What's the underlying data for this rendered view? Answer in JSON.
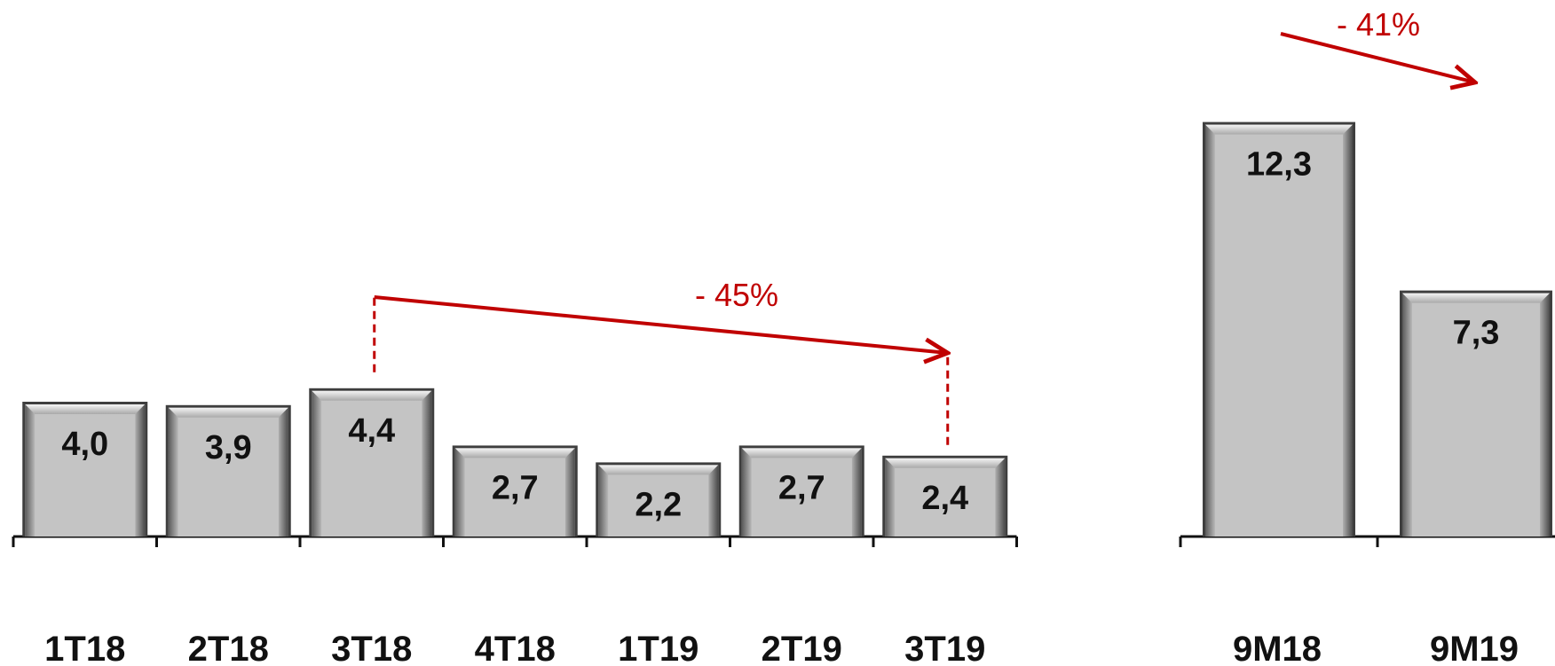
{
  "chart_data": [
    {
      "type": "bar",
      "categories": [
        "1T18",
        "2T18",
        "3T18",
        "4T18",
        "1T19",
        "2T19",
        "3T19"
      ],
      "values": [
        4.0,
        3.9,
        4.4,
        2.7,
        2.2,
        2.7,
        2.4
      ],
      "value_labels": [
        "4,0",
        "3,9",
        "4,4",
        "2,7",
        "2,2",
        "2,7",
        "2,4"
      ],
      "annotation": {
        "text": "- 45%",
        "from": "3T18",
        "to": "3T19"
      },
      "grid": false
    },
    {
      "type": "bar",
      "categories": [
        "9M18",
        "9M19"
      ],
      "values": [
        12.3,
        7.3
      ],
      "value_labels": [
        "12,3",
        "7,3"
      ],
      "annotation": {
        "text": "- 41%",
        "from": "9M18",
        "to": "9M19"
      },
      "grid": false
    }
  ],
  "colors": {
    "bar_fill": "#c4c4c4",
    "bar_edge_light": "#eeeeee",
    "bar_edge_dark": "#555555",
    "annotation": "#c00000",
    "axis": "#111111"
  }
}
